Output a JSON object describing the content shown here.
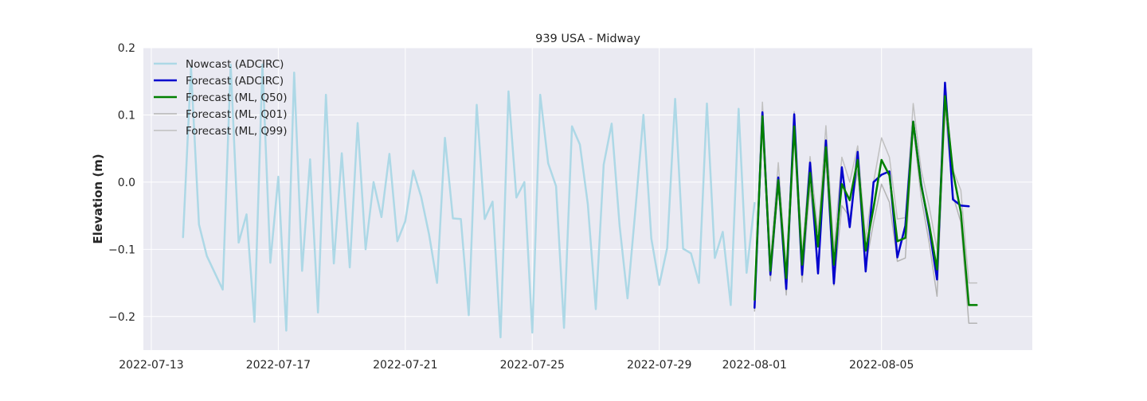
{
  "chart_data": {
    "type": "line",
    "title": "939 USA - Midway",
    "xlabel": "",
    "ylabel": "Elevation (m)",
    "x_type": "date",
    "xlim": [
      "2022-07-12T18:00",
      "2022-08-09T18:00"
    ],
    "ylim": [
      -0.25,
      0.2
    ],
    "grid": true,
    "legend_position": "top-left",
    "x_ticks": [
      "2022-07-13",
      "2022-07-17",
      "2022-07-21",
      "2022-07-25",
      "2022-07-29",
      "2022-08-01",
      "2022-08-05"
    ],
    "y_ticks": [
      -0.2,
      -0.1,
      0.0,
      0.1,
      0.2
    ],
    "y_tick_labels": [
      "−0.2",
      "−0.1",
      "0.0",
      "0.1",
      "0.2"
    ],
    "colors": {
      "plot_background": "#eaeaf2",
      "grid": "#ffffff",
      "nowcast": "#add8e6",
      "forecast_adcirc": "#0000cd",
      "forecast_ml_q50": "#008000",
      "forecast_ml_q01": "#b4b4b4",
      "forecast_ml_q99": "#c0c0c0"
    },
    "series": [
      {
        "name": "Nowcast (ADCIRC)",
        "color_key": "nowcast",
        "x": [
          "2022-07-14T00:00",
          "2022-07-14T06:00",
          "2022-07-14T12:00",
          "2022-07-14T18:00",
          "2022-07-15T06:00",
          "2022-07-15T12:00",
          "2022-07-15T18:00",
          "2022-07-16T00:00",
          "2022-07-16T06:00",
          "2022-07-16T12:00",
          "2022-07-16T18:00",
          "2022-07-17T00:00",
          "2022-07-17T06:00",
          "2022-07-17T12:00",
          "2022-07-17T18:00",
          "2022-07-18T00:00",
          "2022-07-18T06:00",
          "2022-07-18T12:00",
          "2022-07-18T18:00",
          "2022-07-19T00:00",
          "2022-07-19T06:00",
          "2022-07-19T12:00",
          "2022-07-19T18:00",
          "2022-07-20T00:00",
          "2022-07-20T06:00",
          "2022-07-20T12:00",
          "2022-07-20T18:00",
          "2022-07-21T00:00",
          "2022-07-21T06:00",
          "2022-07-21T12:00",
          "2022-07-21T18:00",
          "2022-07-22T00:00",
          "2022-07-22T06:00",
          "2022-07-22T12:00",
          "2022-07-22T18:00",
          "2022-07-23T00:00",
          "2022-07-23T06:00",
          "2022-07-23T12:00",
          "2022-07-23T18:00",
          "2022-07-24T00:00",
          "2022-07-24T06:00",
          "2022-07-24T12:00",
          "2022-07-24T18:00",
          "2022-07-25T00:00",
          "2022-07-25T06:00",
          "2022-07-25T12:00",
          "2022-07-25T18:00",
          "2022-07-26T00:00",
          "2022-07-26T06:00",
          "2022-07-26T12:00",
          "2022-07-26T18:00",
          "2022-07-27T00:00",
          "2022-07-27T06:00",
          "2022-07-27T12:00",
          "2022-07-27T18:00",
          "2022-07-28T00:00",
          "2022-07-28T06:00",
          "2022-07-28T12:00",
          "2022-07-28T18:00",
          "2022-07-29T00:00",
          "2022-07-29T06:00",
          "2022-07-29T12:00",
          "2022-07-29T18:00",
          "2022-07-30T00:00",
          "2022-07-30T06:00",
          "2022-07-30T12:00",
          "2022-07-30T18:00",
          "2022-07-31T00:00",
          "2022-07-31T06:00",
          "2022-07-31T12:00",
          "2022-07-31T18:00",
          "2022-08-01T00:00"
        ],
        "y": [
          -0.082,
          0.17,
          -0.063,
          -0.11,
          -0.16,
          0.175,
          -0.09,
          -0.048,
          -0.208,
          0.175,
          -0.12,
          0.008,
          -0.221,
          0.163,
          -0.132,
          0.034,
          -0.194,
          0.13,
          -0.121,
          0.043,
          -0.127,
          0.088,
          -0.1,
          0.0,
          -0.052,
          0.042,
          -0.088,
          -0.058,
          0.017,
          -0.022,
          -0.078,
          -0.15,
          0.066,
          -0.054,
          -0.055,
          -0.198,
          0.115,
          -0.055,
          -0.029,
          -0.231,
          0.135,
          -0.023,
          0.0,
          -0.224,
          0.13,
          0.028,
          -0.006,
          -0.217,
          0.083,
          0.056,
          -0.033,
          -0.189,
          0.026,
          0.087,
          -0.065,
          -0.173,
          -0.04,
          0.1,
          -0.084,
          -0.153,
          -0.098,
          0.124,
          -0.099,
          -0.106,
          -0.15,
          0.117,
          -0.113,
          -0.074,
          -0.183,
          0.109,
          -0.135,
          -0.031
        ]
      },
      {
        "name": "Forecast (ADCIRC)",
        "color_key": "forecast_adcirc",
        "x": [
          "2022-08-01T00:00",
          "2022-08-01T06:00",
          "2022-08-01T12:00",
          "2022-08-01T18:00",
          "2022-08-02T00:00",
          "2022-08-02T06:00",
          "2022-08-02T12:00",
          "2022-08-02T18:00",
          "2022-08-03T00:00",
          "2022-08-03T06:00",
          "2022-08-03T12:00",
          "2022-08-03T18:00",
          "2022-08-04T00:00",
          "2022-08-04T06:00",
          "2022-08-04T12:00",
          "2022-08-04T18:00",
          "2022-08-05T00:00",
          "2022-08-05T06:00",
          "2022-08-05T12:00",
          "2022-08-05T18:00",
          "2022-08-06T00:00",
          "2022-08-06T06:00",
          "2022-08-06T12:00",
          "2022-08-06T18:00",
          "2022-08-07T00:00",
          "2022-08-07T06:00",
          "2022-08-07T12:00",
          "2022-08-07T18:00"
        ],
        "y": [
          -0.187,
          0.104,
          -0.138,
          0.007,
          -0.159,
          0.101,
          -0.138,
          0.029,
          -0.136,
          0.062,
          -0.151,
          0.022,
          -0.067,
          0.045,
          -0.133,
          0.0,
          0.011,
          0.016,
          -0.112,
          -0.065,
          0.09,
          -0.003,
          -0.068,
          -0.145,
          0.148,
          -0.026,
          -0.035,
          -0.036
        ]
      },
      {
        "name": "Forecast (ML, Q50)",
        "color_key": "forecast_ml_q50",
        "x": [
          "2022-08-01T00:00",
          "2022-08-01T06:00",
          "2022-08-01T12:00",
          "2022-08-01T18:00",
          "2022-08-02T00:00",
          "2022-08-02T06:00",
          "2022-08-02T12:00",
          "2022-08-02T18:00",
          "2022-08-03T00:00",
          "2022-08-03T06:00",
          "2022-08-03T12:00",
          "2022-08-03T18:00",
          "2022-08-04T00:00",
          "2022-08-04T06:00",
          "2022-08-04T12:00",
          "2022-08-04T18:00",
          "2022-08-05T00:00",
          "2022-08-05T06:00",
          "2022-08-05T12:00",
          "2022-08-05T18:00",
          "2022-08-06T00:00",
          "2022-08-06T06:00",
          "2022-08-06T12:00",
          "2022-08-06T18:00",
          "2022-08-07T00:00",
          "2022-08-07T06:00",
          "2022-08-07T12:00",
          "2022-08-07T18:00",
          "2022-08-08T00:00"
        ],
        "y": [
          -0.175,
          0.098,
          -0.132,
          0.003,
          -0.143,
          0.083,
          -0.123,
          0.014,
          -0.096,
          0.052,
          -0.123,
          -0.003,
          -0.027,
          0.033,
          -0.102,
          -0.038,
          0.033,
          0.01,
          -0.088,
          -0.083,
          0.09,
          -0.005,
          -0.063,
          -0.13,
          0.128,
          0.015,
          -0.045,
          -0.183,
          -0.183
        ]
      },
      {
        "name": "Forecast (ML, Q01)",
        "color_key": "forecast_ml_q01",
        "x": [
          "2022-08-01T00:00",
          "2022-08-01T06:00",
          "2022-08-01T12:00",
          "2022-08-01T18:00",
          "2022-08-02T00:00",
          "2022-08-02T06:00",
          "2022-08-02T12:00",
          "2022-08-02T18:00",
          "2022-08-03T00:00",
          "2022-08-03T06:00",
          "2022-08-03T12:00",
          "2022-08-03T18:00",
          "2022-08-04T00:00",
          "2022-08-04T06:00",
          "2022-08-04T12:00",
          "2022-08-04T18:00",
          "2022-08-05T00:00",
          "2022-08-05T06:00",
          "2022-08-05T12:00",
          "2022-08-05T18:00",
          "2022-08-06T00:00",
          "2022-08-06T06:00",
          "2022-08-06T12:00",
          "2022-08-06T18:00",
          "2022-08-07T00:00",
          "2022-08-07T06:00",
          "2022-08-07T12:00",
          "2022-08-07T18:00",
          "2022-08-08T00:00"
        ],
        "y": [
          -0.192,
          0.09,
          -0.147,
          -0.006,
          -0.168,
          0.073,
          -0.149,
          -0.005,
          -0.125,
          0.035,
          -0.154,
          -0.035,
          -0.052,
          0.018,
          -0.125,
          -0.06,
          -0.003,
          -0.03,
          -0.118,
          -0.113,
          0.083,
          -0.023,
          -0.09,
          -0.17,
          0.111,
          -0.02,
          -0.06,
          -0.21,
          -0.21
        ]
      },
      {
        "name": "Forecast (ML, Q99)",
        "color_key": "forecast_ml_q99",
        "x": [
          "2022-08-01T00:00",
          "2022-08-01T06:00",
          "2022-08-01T12:00",
          "2022-08-01T18:00",
          "2022-08-02T00:00",
          "2022-08-02T06:00",
          "2022-08-02T12:00",
          "2022-08-02T18:00",
          "2022-08-03T00:00",
          "2022-08-03T06:00",
          "2022-08-03T12:00",
          "2022-08-03T18:00",
          "2022-08-04T00:00",
          "2022-08-04T06:00",
          "2022-08-04T12:00",
          "2022-08-04T18:00",
          "2022-08-05T00:00",
          "2022-08-05T06:00",
          "2022-08-05T12:00",
          "2022-08-05T18:00",
          "2022-08-06T00:00",
          "2022-08-06T06:00",
          "2022-08-06T12:00",
          "2022-08-06T18:00",
          "2022-08-07T00:00",
          "2022-08-07T06:00",
          "2022-08-07T12:00",
          "2022-08-07T18:00",
          "2022-08-08T00:00"
        ],
        "y": [
          -0.165,
          0.119,
          -0.118,
          0.029,
          -0.134,
          0.105,
          -0.109,
          0.038,
          -0.075,
          0.084,
          -0.101,
          0.037,
          0.0,
          0.054,
          -0.085,
          0.0,
          0.066,
          0.037,
          -0.055,
          -0.053,
          0.117,
          0.018,
          -0.036,
          -0.1,
          0.138,
          0.018,
          -0.012,
          -0.15,
          -0.15
        ]
      }
    ]
  }
}
